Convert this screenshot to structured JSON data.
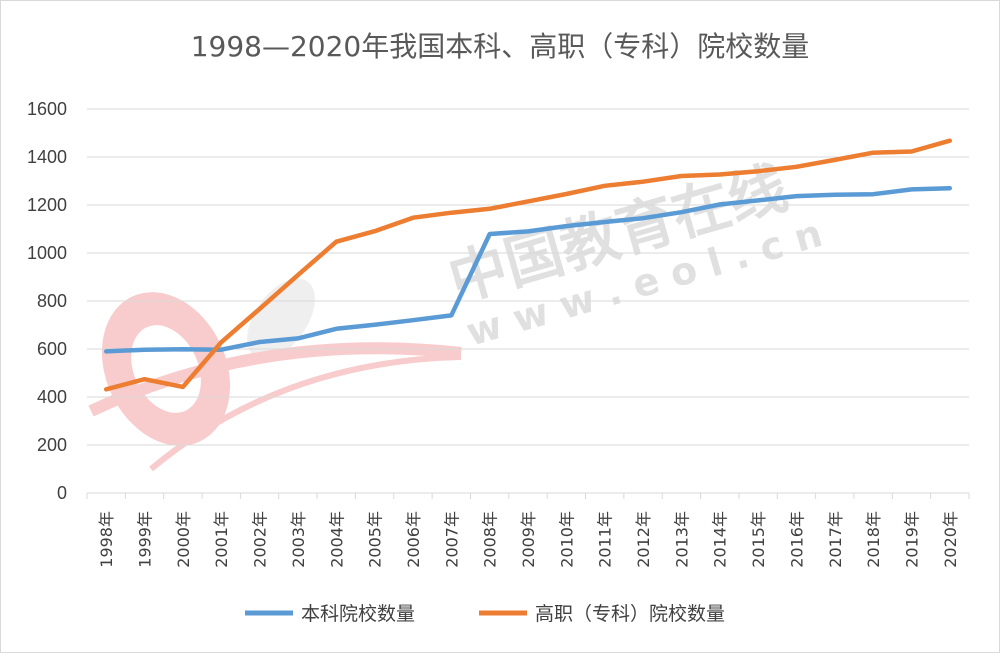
{
  "chart_data": {
    "type": "line",
    "title": "1998—2020年我国本科、高职（专科）院校数量",
    "categories": [
      "1998年",
      "1999年",
      "2000年",
      "2001年",
      "2002年",
      "2003年",
      "2004年",
      "2005年",
      "2006年",
      "2007年",
      "2008年",
      "2009年",
      "2010年",
      "2011年",
      "2012年",
      "2013年",
      "2014年",
      "2015年",
      "2016年",
      "2017年",
      "2018年",
      "2019年",
      "2020年"
    ],
    "ylim": [
      0,
      1600
    ],
    "yticks": [
      0,
      200,
      400,
      600,
      800,
      1000,
      1200,
      1400,
      1600
    ],
    "grid": true,
    "legend_position": "bottom",
    "series": [
      {
        "name": "本科院校数量",
        "color": "#5b9bd5",
        "values": [
          590,
          597,
          599,
          597,
          629,
          644,
          684,
          701,
          720,
          740,
          1079,
          1090,
          1112,
          1129,
          1145,
          1170,
          1202,
          1219,
          1237,
          1243,
          1245,
          1265,
          1270
        ]
      },
      {
        "name": "高职（专科）院校数量",
        "color": "#ed7d31",
        "values": [
          432,
          474,
          442,
          628,
          767,
          908,
          1047,
          1091,
          1147,
          1168,
          1184,
          1215,
          1246,
          1280,
          1297,
          1321,
          1327,
          1341,
          1359,
          1388,
          1418,
          1423,
          1468
        ]
      }
    ]
  },
  "watermark": {
    "text": "中国教育在线",
    "url_text": "w w w . e o l . c n",
    "logo_color": "#e8474c"
  }
}
